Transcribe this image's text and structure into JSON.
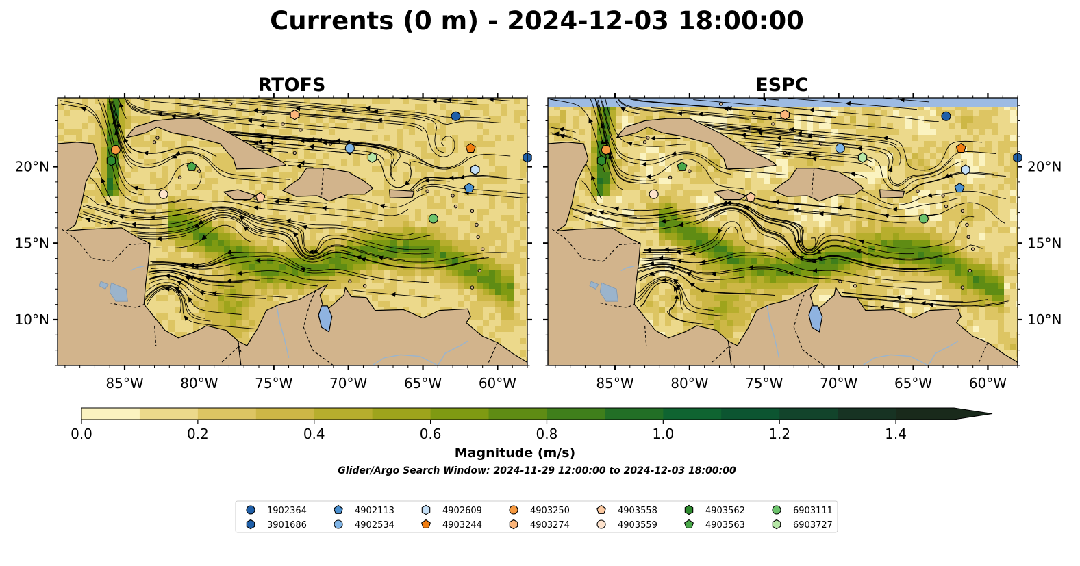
{
  "figure": {
    "title": "Currents (0 m) - 2024-12-03 18:00:00",
    "search_window": "Glider/Argo Search Window: 2024-11-29 12:00:00 to 2024-12-03 18:00:00"
  },
  "colors": {
    "land": "#d2b48c",
    "water_feature": "#8fb3e0",
    "river": "#9bb4cc",
    "no_data": "#9dbbe3",
    "streamline": "#000000",
    "colormap": [
      "#fbf3c0",
      "#ecd98b",
      "#ddc563",
      "#cdb746",
      "#b7ae2d",
      "#9ea41c",
      "#7f9a12",
      "#5f8c14",
      "#3f7f1b",
      "#226f26",
      "#0f6431",
      "#0c5531",
      "#12442b",
      "#173323",
      "#192a1b"
    ]
  },
  "maps": [
    {
      "id": "rtofs",
      "title": "RTOFS",
      "lon_range": [
        -89.5,
        -58.0
      ],
      "lat_range": [
        7.0,
        24.5
      ]
    },
    {
      "id": "espc",
      "title": "ESPC",
      "lon_range": [
        -89.5,
        -58.0
      ],
      "lat_range": [
        7.0,
        24.5
      ]
    }
  ],
  "lon_ticks": [
    {
      "value": -85,
      "label": "85°W"
    },
    {
      "value": -80,
      "label": "80°W"
    },
    {
      "value": -75,
      "label": "75°W"
    },
    {
      "value": -70,
      "label": "70°W"
    },
    {
      "value": -65,
      "label": "65°W"
    },
    {
      "value": -60,
      "label": "60°W"
    }
  ],
  "lat_ticks": [
    {
      "value": 20,
      "label": "20°N"
    },
    {
      "value": 15,
      "label": "15°N"
    },
    {
      "value": 10,
      "label": "10°N"
    }
  ],
  "colorbar": {
    "label": "Magnitude (m/s)",
    "min": 0.0,
    "max": 1.5,
    "step": 0.1,
    "extend": "max",
    "ticks": [
      {
        "value": 0.0,
        "label": "0.0"
      },
      {
        "value": 0.2,
        "label": "0.2"
      },
      {
        "value": 0.4,
        "label": "0.4"
      },
      {
        "value": 0.6,
        "label": "0.6"
      },
      {
        "value": 0.8,
        "label": "0.8"
      },
      {
        "value": 1.0,
        "label": "1.0"
      },
      {
        "value": 1.2,
        "label": "1.2"
      },
      {
        "value": 1.4,
        "label": "1.4"
      }
    ]
  },
  "legend": {
    "items": [
      {
        "id": "1902364",
        "marker": "circle",
        "color": "#1f5fa8"
      },
      {
        "id": "3901686",
        "marker": "hexagon",
        "color": "#1f5fa8"
      },
      {
        "id": "4902113",
        "marker": "pentagon",
        "color": "#4a90d0"
      },
      {
        "id": "4902534",
        "marker": "circle",
        "color": "#7fb4e6"
      },
      {
        "id": "4902609",
        "marker": "hexagon",
        "color": "#c5e0f7"
      },
      {
        "id": "4903244",
        "marker": "pentagon",
        "color": "#f07d10"
      },
      {
        "id": "4903250",
        "marker": "circle",
        "color": "#f79a40"
      },
      {
        "id": "4903274",
        "marker": "hexagon",
        "color": "#fbb57a"
      },
      {
        "id": "4903558",
        "marker": "pentagon",
        "color": "#fcc9a0"
      },
      {
        "id": "4903559",
        "marker": "circle",
        "color": "#fde2cc"
      },
      {
        "id": "4903562",
        "marker": "hexagon",
        "color": "#2e8b2e"
      },
      {
        "id": "4903563",
        "marker": "pentagon",
        "color": "#4aa84a"
      },
      {
        "id": "6903111",
        "marker": "circle",
        "color": "#6cc36c"
      },
      {
        "id": "6903727",
        "marker": "hexagon",
        "color": "#b6e6a6"
      }
    ]
  },
  "floats": [
    {
      "id": "1902364",
      "lon": -62.8,
      "lat": 23.3
    },
    {
      "id": "3901686",
      "lon": -58.0,
      "lat": 20.6
    },
    {
      "id": "4902113",
      "lon": -61.9,
      "lat": 18.6
    },
    {
      "id": "4902534",
      "lon": -69.9,
      "lat": 21.2
    },
    {
      "id": "4902609",
      "lon": -61.5,
      "lat": 19.8
    },
    {
      "id": "4903244",
      "lon": -61.8,
      "lat": 21.2
    },
    {
      "id": "4903250",
      "lon": -85.6,
      "lat": 21.1
    },
    {
      "id": "4903274",
      "lon": -73.6,
      "lat": 23.4
    },
    {
      "id": "4903558",
      "lon": -75.9,
      "lat": 18.0
    },
    {
      "id": "4903559",
      "lon": -82.4,
      "lat": 18.2
    },
    {
      "id": "4903562",
      "lon": -85.9,
      "lat": 20.4
    },
    {
      "id": "4903563",
      "lon": -80.5,
      "lat": 20.0
    },
    {
      "id": "6903111",
      "lon": -64.3,
      "lat": 16.6
    },
    {
      "id": "6903727",
      "lon": -68.4,
      "lat": 20.6
    }
  ]
}
